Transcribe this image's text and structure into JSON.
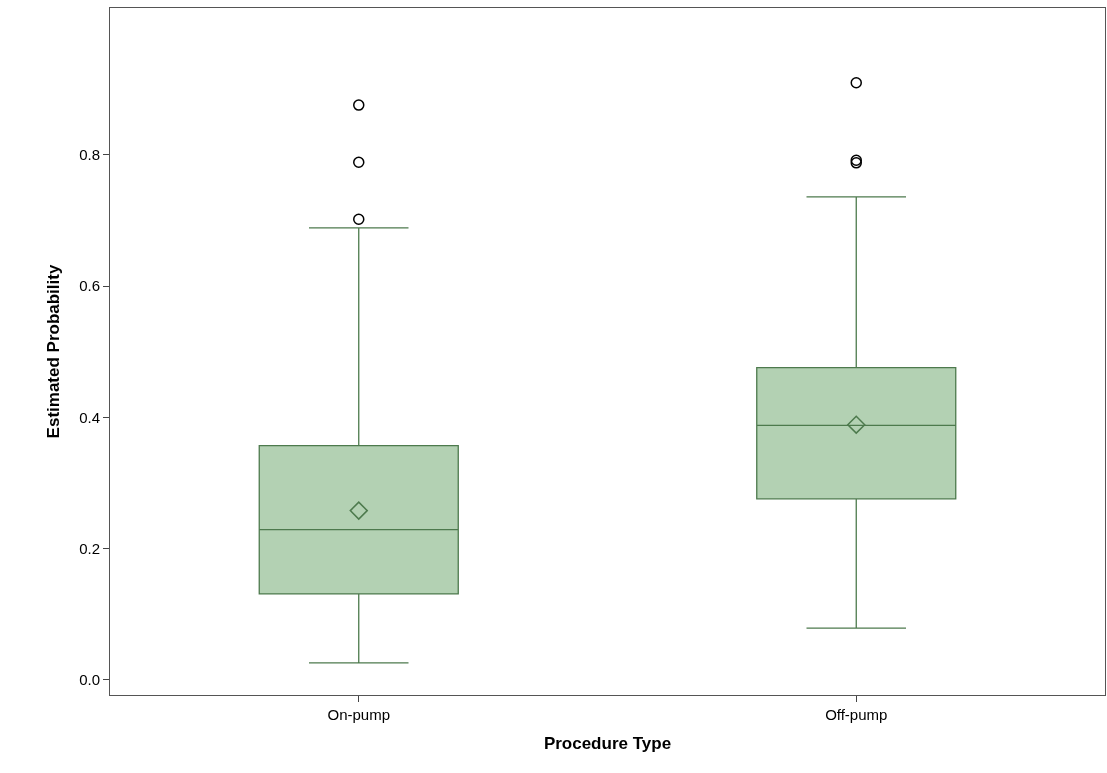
{
  "chart_data": {
    "type": "box",
    "xlabel": "Procedure Type",
    "ylabel": "Estimated Probability",
    "categories": [
      "On-pump",
      "Off-pump"
    ],
    "boxes": [
      {
        "low": 0.026,
        "q1": 0.131,
        "median": 0.229,
        "q3": 0.357,
        "high": 0.689,
        "mean": 0.258,
        "outliers": [
          0.702,
          0.789,
          0.876
        ]
      },
      {
        "low": 0.079,
        "q1": 0.276,
        "median": 0.388,
        "q3": 0.476,
        "high": 0.736,
        "mean": 0.389,
        "outliers": [
          0.788,
          0.792,
          0.91
        ]
      }
    ],
    "color": "#b3d1b3",
    "ylim": [
      -0.023,
      1.024
    ],
    "yticks": [
      {
        "value": 0,
        "label": "0.0"
      },
      0.2,
      0.4,
      0.6,
      0.8
    ]
  }
}
